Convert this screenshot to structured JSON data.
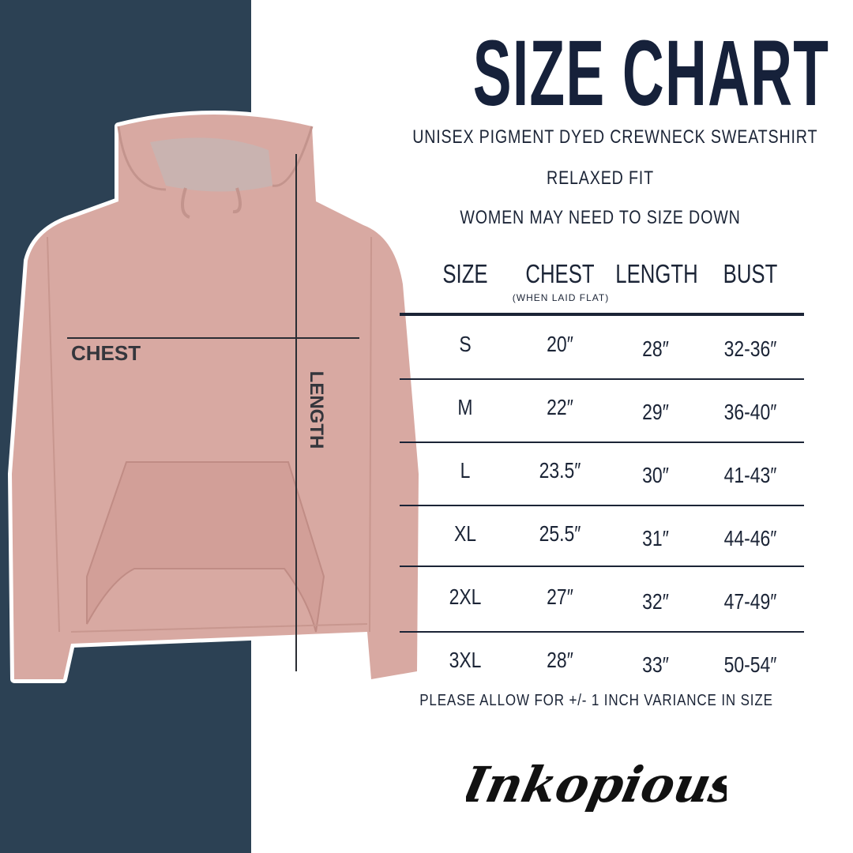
{
  "title": "SIZE CHART",
  "subtitles": [
    "UNISEX PIGMENT DYED CREWNECK SWEATSHIRT",
    "RELAXED FIT",
    "WOMEN MAY NEED TO SIZE DOWN"
  ],
  "image_labels": {
    "chest": "CHEST",
    "length": "LENGTH"
  },
  "table": {
    "headers": [
      "SIZE",
      "CHEST",
      "LENGTH",
      "BUST"
    ],
    "chest_note": "(WHEN LAID FLAT)",
    "rows": [
      [
        "S",
        "20″",
        "28″",
        "32-36″"
      ],
      [
        "M",
        "22″",
        "29″",
        "36-40″"
      ],
      [
        "L",
        "23.5″",
        "30″",
        "41-43″"
      ],
      [
        "XL",
        "25.5″",
        "31″",
        "44-46″"
      ],
      [
        "2XL",
        "27″",
        "32″",
        "47-49″"
      ],
      [
        "3XL",
        "28″",
        "33″",
        "50-54″"
      ]
    ]
  },
  "footer": "PLEASE ALLOW FOR +/- 1 INCH VARIANCE IN SIZE",
  "logo": "Inkopious",
  "colors": {
    "panel": "#2c4154",
    "text": "#1b2436",
    "hoodie": "#d8a9a2"
  }
}
